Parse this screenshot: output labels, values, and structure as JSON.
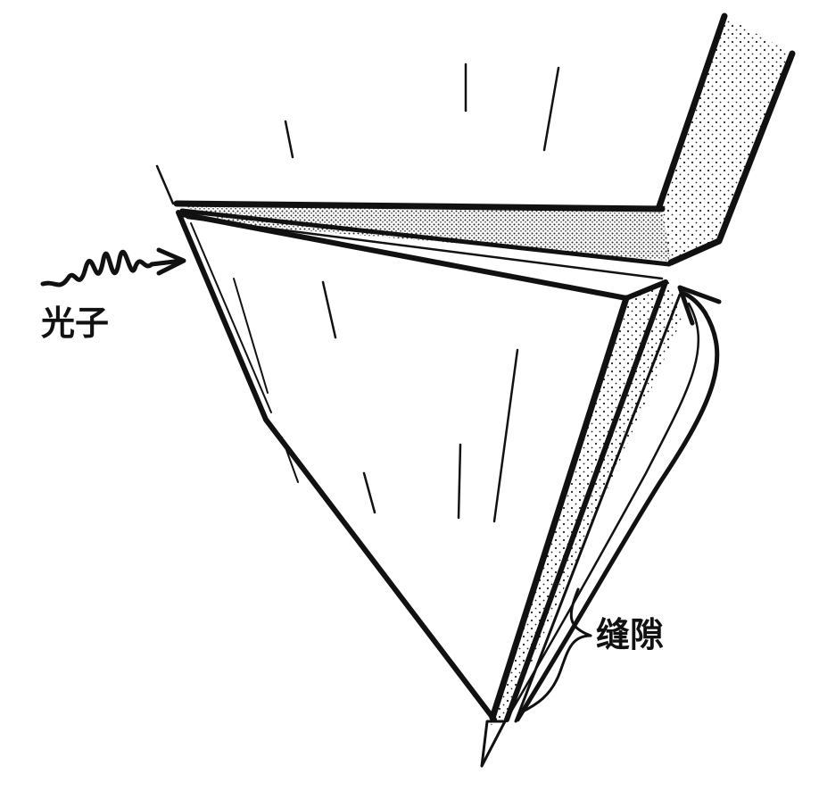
{
  "labels": {
    "photon": "光子",
    "gap": "缝隙"
  },
  "colors": {
    "ink": "#111111",
    "paper": "#ffffff",
    "stipple": "#333333"
  }
}
